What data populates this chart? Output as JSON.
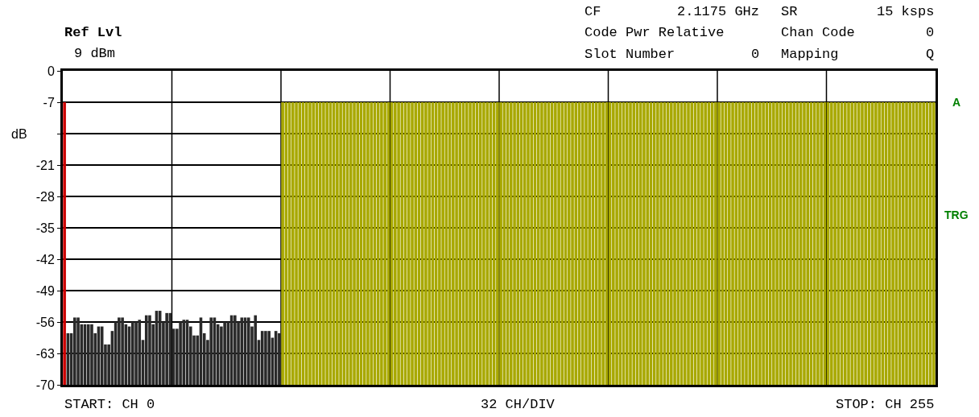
{
  "chart_data": {
    "type": "bar",
    "ylabel": "dB",
    "annotations": [
      "Ref Lvl",
      "9 dBm",
      "CF",
      "2.1175 GHz",
      "SR",
      "15 ksps",
      "Code Pwr Relative",
      "Chan Code",
      "0",
      "Slot Number",
      "0",
      "Mapping",
      "Q",
      "START: CH 0",
      "32 CH/DIV",
      "STOP: CH 255",
      "A",
      "TRG"
    ],
    "categories": [
      null,
      null,
      null,
      null,
      null,
      null,
      null,
      null,
      null,
      null,
      null,
      null,
      null,
      null,
      null,
      null,
      null,
      null,
      null,
      null,
      null,
      null,
      null,
      null,
      null,
      null,
      null,
      null,
      null,
      null,
      null,
      null,
      null,
      null,
      null,
      null,
      null,
      null,
      null,
      null,
      null,
      null,
      null,
      null,
      null,
      null,
      null,
      null,
      null,
      null,
      null,
      null,
      null,
      null,
      null,
      null,
      null,
      null,
      null,
      null,
      null,
      null,
      null,
      null,
      null,
      null,
      null,
      null,
      null,
      null,
      null,
      null,
      null,
      null,
      null,
      null,
      null,
      null,
      null,
      null,
      null,
      null,
      null,
      null,
      null,
      null,
      null,
      null,
      null,
      null,
      null,
      null,
      null,
      null,
      null,
      null,
      null,
      null,
      null,
      null,
      null,
      null,
      null,
      null,
      null,
      null,
      null,
      null,
      null,
      null,
      null,
      null,
      null,
      null,
      null,
      null,
      null,
      null,
      null,
      null,
      null,
      null,
      null,
      null,
      null,
      null,
      null,
      null,
      null,
      null,
      null,
      null,
      null,
      null,
      null,
      null,
      null,
      null,
      null,
      null,
      null,
      null,
      null,
      null,
      null,
      null,
      null,
      null,
      null,
      null,
      null,
      null,
      null,
      null,
      null,
      null,
      null,
      null,
      null,
      null,
      null,
      null,
      null,
      null,
      null,
      null,
      null,
      null,
      null,
      null,
      null,
      null,
      null,
      null,
      null,
      null,
      null,
      null,
      null,
      null,
      null,
      null,
      null,
      null,
      null,
      null,
      null,
      null,
      null,
      null,
      null,
      null,
      null,
      null,
      null,
      null,
      null,
      null,
      null,
      null,
      null,
      null,
      null,
      null,
      null,
      null,
      null,
      null,
      null,
      null,
      null,
      null,
      null,
      null,
      null,
      null,
      null,
      null,
      null,
      null,
      null,
      null,
      null,
      null,
      null,
      null,
      null,
      null,
      null,
      null,
      null,
      null,
      null,
      null,
      null,
      null,
      null,
      null,
      null,
      null,
      null,
      null,
      null,
      null,
      null,
      null,
      null,
      null,
      null,
      null,
      null,
      null,
      null,
      null,
      null,
      null
    ],
    "base": [
      -70,
      -70,
      -70,
      -70,
      -70,
      -70,
      -70,
      -70,
      -70,
      -70,
      -70,
      -70,
      -70,
      -70,
      -70,
      -70,
      -70,
      -70,
      -70,
      -70,
      -70,
      -70,
      -70,
      -70,
      -70,
      -70,
      -70,
      -70,
      -70,
      -70,
      -70,
      -70,
      -70,
      -70,
      -70,
      -70,
      -70,
      -70,
      -70,
      -70,
      -70,
      -70,
      -70,
      -70,
      -70,
      -70,
      -70,
      -70,
      -70,
      -70,
      -70,
      -70,
      -70,
      -70,
      -70,
      -70,
      -70,
      -70,
      -70,
      -70,
      -70,
      -70,
      -70,
      -70,
      -70,
      -70,
      -70,
      -70,
      -70,
      -70,
      -70,
      -70,
      -70,
      -70,
      -70,
      -70,
      -70,
      -70,
      -70,
      -70,
      -70,
      -70,
      -70,
      -70,
      -70,
      -70,
      -70,
      -70,
      -70,
      -70,
      -70,
      -70,
      -70,
      -70,
      -70,
      -70,
      -70,
      -70,
      -70,
      -70,
      -70,
      -70,
      -70,
      -70,
      -70,
      -70,
      -70,
      -70,
      -70,
      -70,
      -70,
      -70,
      -70,
      -70,
      -70,
      -70,
      -70,
      -70,
      -70,
      -70,
      -70,
      -70,
      -70,
      -70,
      -70,
      -70,
      -70,
      -70,
      -70,
      -70,
      -70,
      -70,
      -70,
      -70,
      -70,
      -70,
      -70,
      -70,
      -70,
      -70,
      -70,
      -70,
      -70,
      -70,
      -70,
      -70,
      -70,
      -70,
      -70,
      -70,
      -70,
      -70,
      -70,
      -70,
      -70,
      -70,
      -70,
      -70,
      -70,
      -70,
      -70,
      -70,
      -70,
      -70,
      -70,
      -70,
      -70,
      -70,
      -70,
      -70,
      -70,
      -70,
      -70,
      -70,
      -70,
      -70,
      -70,
      -70,
      -70,
      -70,
      -70,
      -70,
      -70,
      -70,
      -70,
      -70,
      -70,
      -70,
      -70,
      -70,
      -70,
      -70,
      -70,
      -70,
      -70,
      -70,
      -70,
      -70,
      -70,
      -70,
      -70,
      -70,
      -70,
      -70,
      -70,
      -70,
      -70,
      -70,
      -70,
      -70,
      -70,
      -70,
      -70,
      -70,
      -70,
      -70,
      -70,
      -70,
      -70,
      -70,
      -70,
      -70,
      -70,
      -70,
      -70,
      -70,
      -70,
      -70,
      -70,
      -70,
      -70,
      -70,
      -70,
      -70,
      -70,
      -70,
      -70,
      -70,
      -70,
      -70,
      -70,
      -70,
      -70,
      -70,
      -70,
      -70,
      -70,
      -70,
      -70,
      -70,
      -70,
      -70,
      -70,
      -70,
      -70,
      -70
    ],
    "values": [
      63,
      11.5,
      11.5,
      15,
      15,
      13.5,
      13.5,
      13.5,
      13.5,
      11.5,
      13,
      13,
      9,
      9,
      12,
      14,
      15,
      15,
      13.5,
      13,
      14,
      14,
      14.5,
      10,
      15.5,
      15.5,
      13.5,
      16.5,
      16.5,
      14,
      16,
      16,
      12.5,
      12.5,
      14,
      14.5,
      14.5,
      13,
      11,
      11,
      15,
      11.5,
      10,
      15,
      15,
      13.5,
      13,
      14,
      14,
      15.5,
      15.5,
      14,
      15,
      15,
      15,
      13,
      15.5,
      10,
      12,
      12,
      12,
      10.5,
      12,
      11.5,
      63,
      63,
      63,
      63,
      63,
      63,
      63,
      63,
      63,
      63,
      63,
      63,
      63,
      63,
      63,
      63,
      63,
      63,
      63,
      63,
      63,
      63,
      63,
      63,
      63,
      63,
      63,
      63,
      63,
      63,
      63,
      63,
      63,
      63,
      63,
      63,
      63,
      63,
      63,
      63,
      63,
      63,
      63,
      63,
      63,
      63,
      63,
      63,
      63,
      63,
      63,
      63,
      63,
      63,
      63,
      63,
      63,
      63,
      63,
      63,
      63,
      63,
      63,
      63,
      63,
      63,
      63,
      63,
      63,
      63,
      63,
      63,
      63,
      63,
      63,
      63,
      63,
      63,
      63,
      63,
      63,
      63,
      63,
      63,
      63,
      63,
      63,
      63,
      63,
      63,
      63,
      63,
      63,
      63,
      63,
      63,
      63,
      63,
      63,
      63,
      63,
      63,
      63,
      63,
      63,
      63,
      63,
      63,
      63,
      63,
      63,
      63,
      63,
      63,
      63,
      63,
      63,
      63,
      63,
      63,
      63,
      63,
      63,
      63,
      63,
      63,
      63,
      63,
      63,
      63,
      63,
      63,
      63,
      63,
      63,
      63,
      63,
      63,
      63,
      63,
      63,
      63,
      63,
      63,
      63,
      63,
      63,
      63,
      63,
      63,
      63,
      63,
      63,
      63,
      63,
      63,
      63,
      63,
      63,
      63,
      63,
      63,
      63,
      63,
      63,
      63,
      63,
      63,
      63,
      63,
      63,
      63,
      63,
      63,
      63,
      63,
      63,
      63,
      63,
      63,
      63,
      63,
      63,
      63,
      63,
      63,
      63,
      63,
      63,
      63,
      63,
      63
    ],
    "colors": [
      "#cc0000",
      "#2a2a2a",
      "#2a2a2a",
      "#2a2a2a",
      "#2a2a2a",
      "#2a2a2a",
      "#2a2a2a",
      "#2a2a2a",
      "#2a2a2a",
      "#2a2a2a",
      "#2a2a2a",
      "#2a2a2a",
      "#2a2a2a",
      "#2a2a2a",
      "#2a2a2a",
      "#2a2a2a",
      "#2a2a2a",
      "#2a2a2a",
      "#2a2a2a",
      "#2a2a2a",
      "#2a2a2a",
      "#2a2a2a",
      "#2a2a2a",
      "#2a2a2a",
      "#2a2a2a",
      "#2a2a2a",
      "#2a2a2a",
      "#2a2a2a",
      "#2a2a2a",
      "#2a2a2a",
      "#2a2a2a",
      "#2a2a2a",
      "#2a2a2a",
      "#2a2a2a",
      "#2a2a2a",
      "#2a2a2a",
      "#2a2a2a",
      "#2a2a2a",
      "#2a2a2a",
      "#2a2a2a",
      "#2a2a2a",
      "#2a2a2a",
      "#2a2a2a",
      "#2a2a2a",
      "#2a2a2a",
      "#2a2a2a",
      "#2a2a2a",
      "#2a2a2a",
      "#2a2a2a",
      "#2a2a2a",
      "#2a2a2a",
      "#2a2a2a",
      "#2a2a2a",
      "#2a2a2a",
      "#2a2a2a",
      "#2a2a2a",
      "#2a2a2a",
      "#2a2a2a",
      "#2a2a2a",
      "#2a2a2a",
      "#2a2a2a",
      "#2a2a2a",
      "#2a2a2a",
      "#2a2a2a",
      "#a8a800",
      "#a8a800",
      "#a8a800",
      "#a8a800",
      "#a8a800",
      "#a8a800",
      "#a8a800",
      "#a8a800",
      "#a8a800",
      "#a8a800",
      "#a8a800",
      "#a8a800",
      "#a8a800",
      "#a8a800",
      "#a8a800",
      "#a8a800",
      "#a8a800",
      "#a8a800",
      "#a8a800",
      "#a8a800",
      "#a8a800",
      "#a8a800",
      "#a8a800",
      "#a8a800",
      "#a8a800",
      "#a8a800",
      "#a8a800",
      "#a8a800",
      "#a8a800",
      "#a8a800",
      "#a8a800",
      "#a8a800",
      "#a8a800",
      "#a8a800",
      "#a8a800",
      "#a8a800",
      "#a8a800",
      "#a8a800",
      "#a8a800",
      "#a8a800",
      "#a8a800",
      "#a8a800",
      "#a8a800",
      "#a8a800",
      "#a8a800",
      "#a8a800",
      "#a8a800",
      "#a8a800",
      "#a8a800",
      "#a8a800",
      "#a8a800",
      "#a8a800",
      "#a8a800",
      "#a8a800",
      "#a8a800",
      "#a8a800",
      "#a8a800",
      "#a8a800",
      "#a8a800",
      "#a8a800",
      "#a8a800",
      "#a8a800",
      "#a8a800",
      "#a8a800",
      "#a8a800",
      "#a8a800",
      "#a8a800",
      "#a8a800",
      "#a8a800",
      "#a8a800",
      "#a8a800",
      "#a8a800",
      "#a8a800",
      "#a8a800",
      "#a8a800",
      "#a8a800",
      "#a8a800",
      "#a8a800",
      "#a8a800",
      "#a8a800",
      "#a8a800",
      "#a8a800",
      "#a8a800",
      "#a8a800",
      "#a8a800",
      "#a8a800",
      "#a8a800",
      "#a8a800",
      "#a8a800",
      "#a8a800",
      "#a8a800",
      "#a8a800",
      "#a8a800",
      "#a8a800",
      "#a8a800",
      "#a8a800",
      "#a8a800",
      "#a8a800",
      "#a8a800",
      "#a8a800",
      "#a8a800",
      "#a8a800",
      "#a8a800",
      "#a8a800",
      "#a8a800",
      "#a8a800",
      "#a8a800",
      "#a8a800",
      "#a8a800",
      "#a8a800",
      "#a8a800",
      "#a8a800",
      "#a8a800",
      "#a8a800",
      "#a8a800",
      "#a8a800",
      "#a8a800",
      "#a8a800",
      "#a8a800",
      "#a8a800",
      "#a8a800",
      "#a8a800",
      "#a8a800",
      "#a8a800",
      "#a8a800",
      "#a8a800",
      "#a8a800",
      "#a8a800",
      "#a8a800",
      "#a8a800",
      "#a8a800",
      "#a8a800",
      "#a8a800",
      "#a8a800",
      "#a8a800",
      "#a8a800",
      "#a8a800",
      "#a8a800",
      "#a8a800",
      "#a8a800",
      "#a8a800",
      "#a8a800",
      "#a8a800",
      "#a8a800",
      "#a8a800",
      "#a8a800",
      "#a8a800",
      "#a8a800",
      "#a8a800",
      "#a8a800",
      "#a8a800",
      "#a8a800",
      "#a8a800",
      "#a8a800",
      "#a8a800",
      "#a8a800",
      "#a8a800",
      "#a8a800",
      "#a8a800",
      "#a8a800",
      "#a8a800",
      "#a8a800",
      "#a8a800",
      "#a8a800",
      "#a8a800",
      "#a8a800",
      "#a8a800",
      "#a8a800",
      "#a8a800",
      "#a8a800",
      "#a8a800",
      "#a8a800",
      "#a8a800",
      "#a8a800",
      "#a8a800",
      "#a8a800",
      "#a8a800",
      "#a8a800",
      "#a8a800",
      "#a8a800",
      "#a8a800",
      "#a8a800",
      "#a8a800",
      "#a8a800",
      "#a8a800",
      "#a8a800",
      "#a8a800",
      "#a8a800",
      "#a8a800",
      "#a8a800",
      "#a8a800",
      "#a8a800"
    ],
    "ylim": [
      -70,
      0
    ],
    "yticks": [
      0,
      -7,
      {
        "value": -14,
        "label": null
      },
      -21,
      -28,
      -35,
      -42,
      -49,
      -56,
      -63,
      -70
    ],
    "tick_labels": "y",
    "grid": true
  }
}
